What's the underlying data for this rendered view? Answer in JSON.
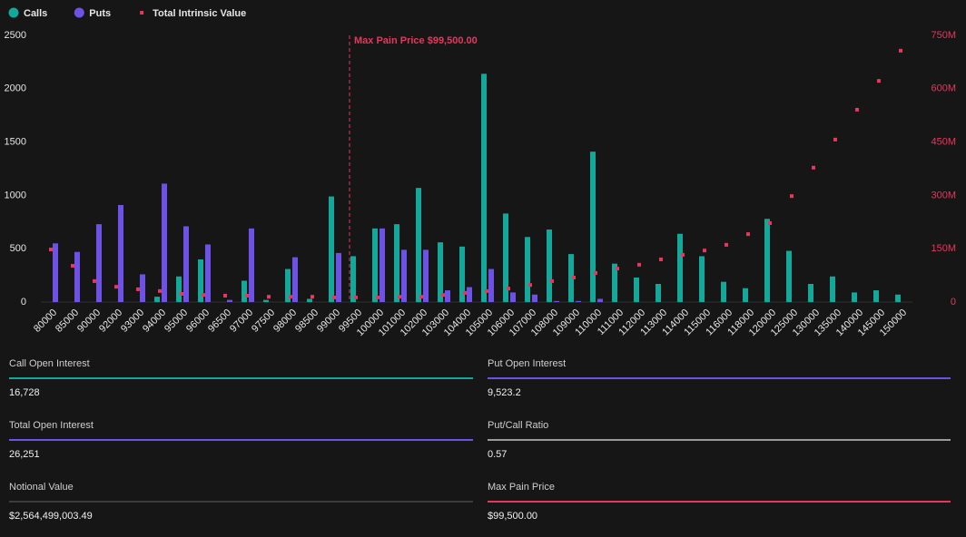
{
  "chart_data": {
    "type": "bar",
    "categories": [
      "80000",
      "85000",
      "90000",
      "92000",
      "93000",
      "94000",
      "95000",
      "96000",
      "96500",
      "97000",
      "97500",
      "98000",
      "98500",
      "99000",
      "99500",
      "100000",
      "101000",
      "102000",
      "103000",
      "104000",
      "105000",
      "106000",
      "107000",
      "108000",
      "109000",
      "110000",
      "111000",
      "112000",
      "113000",
      "114000",
      "115000",
      "116000",
      "118000",
      "120000",
      "125000",
      "130000",
      "135000",
      "140000",
      "145000",
      "150000"
    ],
    "series": [
      {
        "name": "Calls",
        "color": "#14a89b",
        "values": [
          0,
          0,
          0,
          0,
          0,
          50,
          240,
          400,
          0,
          200,
          20,
          310,
          30,
          990,
          430,
          690,
          730,
          1070,
          560,
          520,
          2140,
          830,
          610,
          680,
          450,
          1410,
          360,
          230,
          170,
          640,
          430,
          190,
          130,
          780,
          480,
          170,
          240,
          90,
          110,
          70
        ]
      },
      {
        "name": "Puts",
        "color": "#6e52e6",
        "values": [
          550,
          470,
          730,
          910,
          260,
          1110,
          710,
          540,
          20,
          690,
          0,
          420,
          0,
          460,
          0,
          690,
          490,
          490,
          110,
          140,
          310,
          90,
          70,
          10,
          10,
          30,
          0,
          0,
          0,
          0,
          0,
          0,
          0,
          0,
          0,
          0,
          0,
          0,
          0,
          0
        ]
      },
      {
        "name": "Total Intrinsic Value",
        "color": "#e8365d",
        "axis": "y2",
        "values": [
          148000000,
          102000000,
          59000000,
          43000000,
          36000000,
          31000000,
          23000000,
          20000000,
          18000000,
          18000000,
          15000000,
          15000000,
          15000000,
          13000000,
          13000000,
          13000000,
          15000000,
          15000000,
          20000000,
          26000000,
          31000000,
          38000000,
          48000000,
          59000000,
          69000000,
          82000000,
          94000000,
          105000000,
          120000000,
          133000000,
          145000000,
          161000000,
          191000000,
          222000000,
          298000000,
          378000000,
          457000000,
          541000000,
          622000000,
          707000000
        ]
      }
    ],
    "ylim": [
      0,
      2500
    ],
    "yticks": [
      0,
      500,
      1000,
      1500,
      2000,
      2500
    ],
    "y2lim": [
      0,
      750000000
    ],
    "y2ticks": [
      {
        "value": 0,
        "label": "0"
      },
      {
        "value": 150000000,
        "label": "150M"
      },
      {
        "value": 300000000,
        "label": "300M"
      },
      {
        "value": 450000000,
        "label": "450M"
      },
      {
        "value": 600000000,
        "label": "600M"
      },
      {
        "value": 750000000,
        "label": "750M"
      }
    ],
    "annotation": {
      "category": "99500",
      "label": "Max Pain Price $99,500.00",
      "color": "#e8365d"
    }
  },
  "stats": [
    {
      "label": "Call Open Interest",
      "value": "16,728",
      "color": "#14a89b"
    },
    {
      "label": "Put Open Interest",
      "value": "9,523.2",
      "color": "#6e52e6"
    },
    {
      "label": "Total Open Interest",
      "value": "26,251",
      "color": "#6e52e6"
    },
    {
      "label": "Put/Call Ratio",
      "value": "0.57",
      "color": "#9a9a9a"
    },
    {
      "label": "Notional Value",
      "value": "$2,564,499,003.49",
      "color": "#3c3c3c"
    },
    {
      "label": "Max Pain Price",
      "value": "$99,500.00",
      "color": "#e8365d"
    }
  ]
}
